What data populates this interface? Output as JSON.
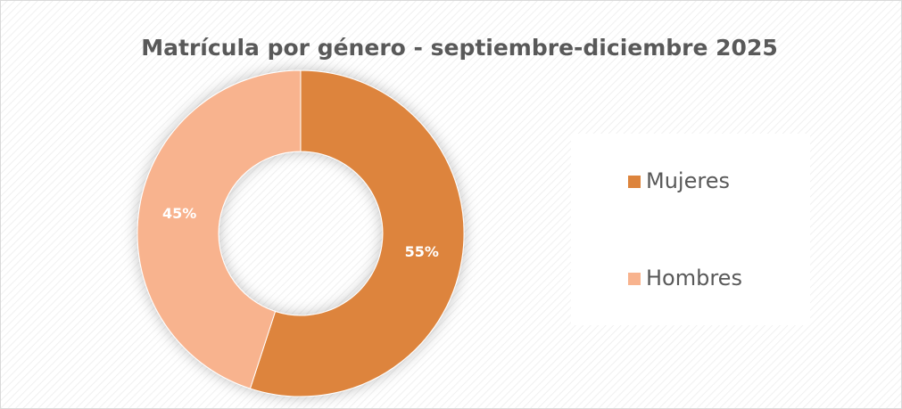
{
  "chart_data": {
    "type": "pie",
    "donut": true,
    "title": "Matrícula por género - septiembre-diciembre 2025",
    "categories": [
      "Mujeres",
      "Hombres"
    ],
    "values": [
      55,
      45
    ],
    "value_labels": [
      "55%",
      "45%"
    ],
    "colors": [
      "#dd843c",
      "#f8b38e"
    ],
    "legend": "right"
  }
}
